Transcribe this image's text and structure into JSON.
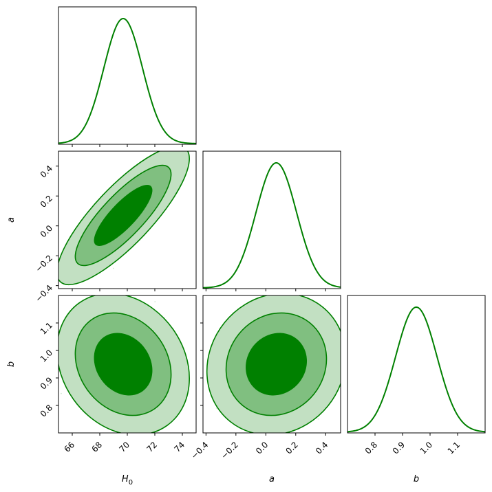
{
  "chart_data": {
    "type": "corner",
    "color": "#008000",
    "fill_light": "#c2e0c2",
    "fill_mid": "#80bf80",
    "fill_dark": "#008000",
    "parameters": [
      {
        "key": "H0",
        "label": "H",
        "label_sub": "0",
        "range": [
          65,
          75
        ],
        "ticks": [
          66,
          68,
          70,
          72,
          74
        ],
        "tick_labels": [
          "66",
          "68",
          "70",
          "72",
          "74"
        ],
        "mean": 69.7,
        "sigma": 1.4
      },
      {
        "key": "a",
        "label": "a",
        "range": [
          -0.42,
          0.5
        ],
        "ticks": [
          -0.4,
          -0.2,
          0.0,
          0.2,
          0.4
        ],
        "tick_labels": [
          "−0.4",
          "−0.2",
          "0.0",
          "0.2",
          "0.4"
        ],
        "mean": 0.07,
        "sigma": 0.135
      },
      {
        "key": "b",
        "label": "b",
        "range": [
          0.7,
          1.2
        ],
        "ticks": [
          0.8,
          0.9,
          1.0,
          1.1
        ],
        "tick_labels": [
          "0.8",
          "0.9",
          "1.0",
          "1.1"
        ],
        "mean": 0.95,
        "sigma": 0.075
      }
    ],
    "correlations": {
      "H0_a": 0.82,
      "H0_b": -0.2,
      "a_b": 0.1
    },
    "contour_levels_sigma": [
      1,
      2,
      3
    ],
    "show_scatter": true
  }
}
